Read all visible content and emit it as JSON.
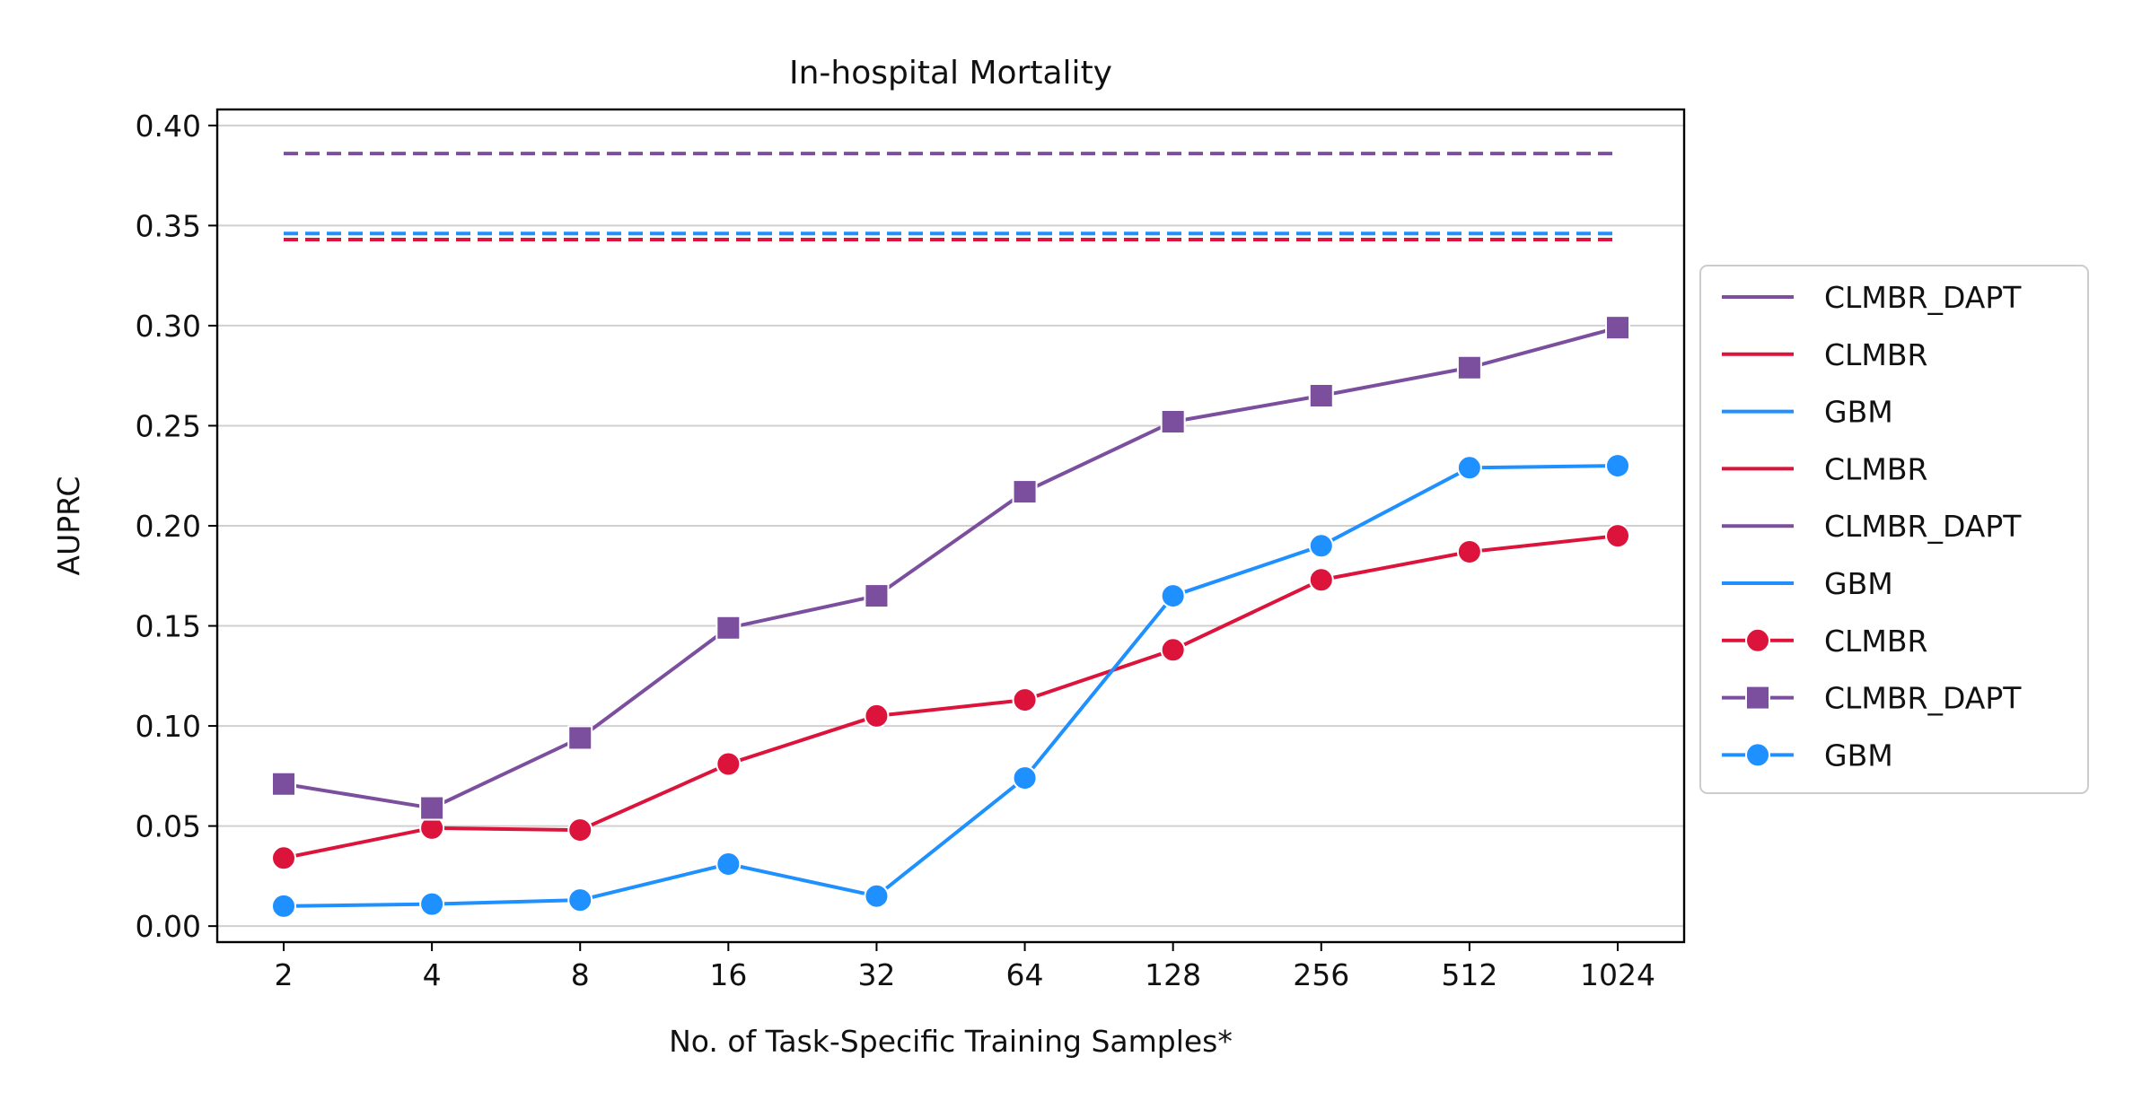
{
  "chart_data": {
    "type": "line",
    "title": "In-hospital Mortality",
    "xlabel": "No. of Task-Specific Training Samples*",
    "ylabel": "AUPRC",
    "categories": [
      "2",
      "4",
      "8",
      "16",
      "32",
      "64",
      "128",
      "256",
      "512",
      "1024"
    ],
    "ylim": [
      -0.008,
      0.408
    ],
    "yticks": [
      "0.00",
      "0.05",
      "0.10",
      "0.15",
      "0.20",
      "0.25",
      "0.30",
      "0.35",
      "0.40"
    ],
    "ytick_values": [
      0.0,
      0.05,
      0.1,
      0.15,
      0.2,
      0.25,
      0.3,
      0.35,
      0.4
    ],
    "grid": "horizontal",
    "legend_position": "right, outside plot",
    "baselines": [
      {
        "name": "CLMBR_DAPT",
        "value": 0.386,
        "color": "#7B4F9E",
        "style": "dashed"
      },
      {
        "name": "CLMBR",
        "value": 0.343,
        "color": "#DC143C",
        "style": "dashed"
      },
      {
        "name": "GBM",
        "value": 0.346,
        "color": "#1E90FF",
        "style": "dashed"
      }
    ],
    "series": [
      {
        "name": "CLMBR",
        "color": "#DC143C",
        "marker": "circle",
        "values": [
          0.034,
          0.049,
          0.048,
          0.081,
          0.105,
          0.113,
          0.138,
          0.173,
          0.187,
          0.195
        ]
      },
      {
        "name": "CLMBR_DAPT",
        "color": "#7B4F9E",
        "marker": "square",
        "values": [
          0.071,
          0.059,
          0.094,
          0.149,
          0.165,
          0.217,
          0.252,
          0.265,
          0.279,
          0.299
        ]
      },
      {
        "name": "GBM",
        "color": "#1E90FF",
        "marker": "circle",
        "values": [
          0.01,
          0.011,
          0.013,
          0.031,
          0.015,
          0.074,
          0.165,
          0.19,
          0.229,
          0.23
        ]
      }
    ],
    "legend": [
      {
        "label": "CLMBR_DAPT",
        "color": "#7B4F9E",
        "marker": "none"
      },
      {
        "label": "CLMBR",
        "color": "#DC143C",
        "marker": "none"
      },
      {
        "label": "GBM",
        "color": "#1E90FF",
        "marker": "none"
      },
      {
        "label": "CLMBR",
        "color": "#DC143C",
        "marker": "none"
      },
      {
        "label": "CLMBR_DAPT",
        "color": "#7B4F9E",
        "marker": "none"
      },
      {
        "label": "GBM",
        "color": "#1E90FF",
        "marker": "none"
      },
      {
        "label": "CLMBR",
        "color": "#DC143C",
        "marker": "circle"
      },
      {
        "label": "CLMBR_DAPT",
        "color": "#7B4F9E",
        "marker": "square"
      },
      {
        "label": "GBM",
        "color": "#1E90FF",
        "marker": "circle"
      }
    ]
  }
}
